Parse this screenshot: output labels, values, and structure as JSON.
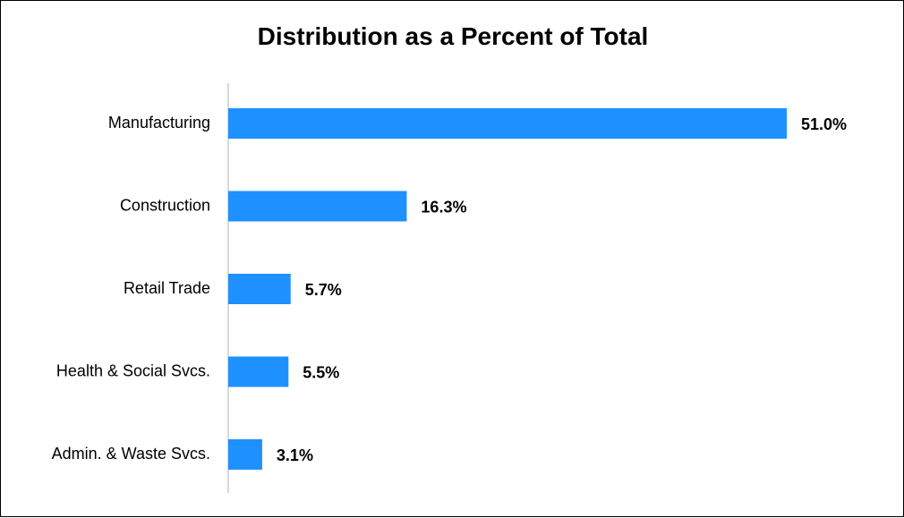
{
  "chart_data": {
    "type": "bar",
    "orientation": "horizontal",
    "title": "Distribution as a Percent of Total",
    "xlabel": "",
    "ylabel": "",
    "categories": [
      "Manufacturing",
      "Construction",
      "Retail Trade",
      "Health & Social Svcs.",
      "Admin. & Waste Svcs."
    ],
    "values": [
      51.0,
      16.3,
      5.7,
      5.5,
      3.1
    ],
    "value_labels": [
      "51.0%",
      "16.3%",
      "5.7%",
      "5.5%",
      "3.1%"
    ],
    "xlim": [
      0,
      51.0
    ],
    "grid": false,
    "legend": "none",
    "bar_color": "#1e90ff",
    "axis_color": "#d9d9d9"
  }
}
